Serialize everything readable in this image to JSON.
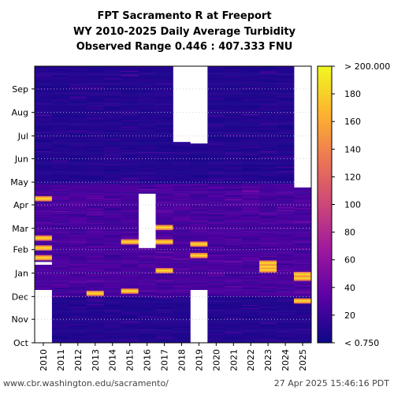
{
  "chart_data": {
    "type": "heatmap",
    "title_lines": [
      "FPT Sacramento R at Freeport",
      "WY 2010-2025 Daily Average Turbidity",
      "Observed Range 0.446 : 407.333 FNU"
    ],
    "xlabel": "",
    "ylabel": "",
    "x_categories": [
      "2010",
      "2011",
      "2012",
      "2013",
      "2014",
      "2015",
      "2016",
      "2017",
      "2018",
      "2019",
      "2020",
      "2021",
      "2022",
      "2023",
      "2024",
      "2025"
    ],
    "y_ticks": [
      "Oct",
      "Nov",
      "Dec",
      "Jan",
      "Feb",
      "Mar",
      "Apr",
      "May",
      "Jun",
      "Jul",
      "Aug",
      "Sep"
    ],
    "y_axis_order": "Oct at bottom, Sep at top (water year)",
    "colorbar": {
      "min_label": "< 0.750",
      "max_label": "> 200.000",
      "ticks": [
        20,
        40,
        60,
        80,
        100,
        120,
        140,
        160,
        180
      ],
      "range": [
        0,
        200
      ],
      "colormap": [
        "#0d0887",
        "#5c01a6",
        "#9c179e",
        "#cc4778",
        "#ed7953",
        "#fdb42f",
        "#f0f921"
      ]
    },
    "missing_data": [
      {
        "year": "2010",
        "from_day": 0,
        "to_day": 70,
        "note": "Oct through mid-Dec blank"
      },
      {
        "year": "2010",
        "from_day": 103,
        "to_day": 107,
        "note": "gap near early Jan"
      },
      {
        "year": "2016",
        "from_day": 125,
        "to_day": 197,
        "note": "blank Feb through Apr"
      },
      {
        "year": "2018",
        "from_day": 265,
        "to_day": 365,
        "note": "blank Jul through Sep"
      },
      {
        "year": "2019",
        "from_day": 0,
        "to_day": 70,
        "note": "Oct through Dec blank"
      },
      {
        "year": "2019",
        "from_day": 263,
        "to_day": 365,
        "note": "blank Jul through Sep"
      },
      {
        "year": "2025",
        "from_day": 205,
        "to_day": 365,
        "note": "not yet observed (data through late Apr)"
      }
    ],
    "high_turbidity_events": [
      {
        "year": "2010",
        "approx_days": [
          112,
          125,
          138,
          190
        ]
      },
      {
        "year": "2013",
        "approx_days": [
          65
        ]
      },
      {
        "year": "2015",
        "approx_days": [
          68,
          133
        ]
      },
      {
        "year": "2017",
        "approx_days": [
          95,
          133,
          152
        ]
      },
      {
        "year": "2019",
        "approx_days": [
          115,
          130
        ]
      },
      {
        "year": "2023",
        "approx_days": [
          96,
          100,
          105
        ]
      },
      {
        "year": "2025",
        "approx_days": [
          55,
          85,
          90
        ]
      }
    ],
    "background_level": "mostly < 20 FNU (dark purple)"
  },
  "footer": {
    "url": "www.cbr.washington.edu/sacramento/",
    "timestamp": "27 Apr 2025 15:46:16 PDT"
  }
}
